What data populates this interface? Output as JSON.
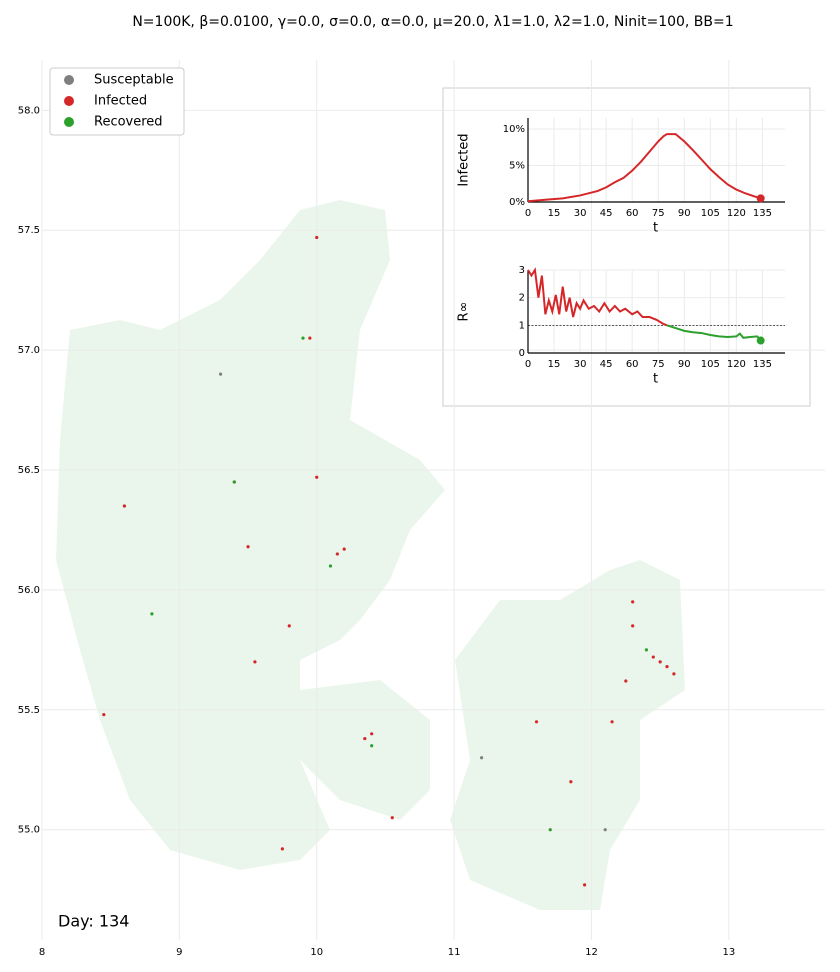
{
  "chart_data": [
    {
      "type": "scatter",
      "title": "N=100K, β=0.0100, γ=0.0, σ=0.0,  α=0.0, μ=20.0, λ1=1.0, λ2=1.0, Ninit=100, BB=1",
      "annotation": "Day: 134",
      "xlim": [
        8,
        13.7
      ],
      "ylim": [
        54.54,
        58.21
      ],
      "xticks": [
        8,
        9,
        10,
        11,
        12,
        13
      ],
      "yticks": [
        {
          "value": 55,
          "label": "55.0"
        },
        {
          "value": 55.5,
          "label": "55.5"
        },
        {
          "value": 56,
          "label": "56.0"
        },
        {
          "value": 56.5,
          "label": "56.5"
        },
        {
          "value": 57,
          "label": "57.0"
        },
        {
          "value": 57.5,
          "label": "57.5"
        },
        {
          "value": 58,
          "label": "58.0"
        }
      ],
      "grid": true,
      "legend": "upper left",
      "series": [
        {
          "name": "Susceptable",
          "color": "#7f7f7f",
          "x": [
            9.3,
            11.2,
            12.1
          ],
          "values": [
            56.9,
            55.3,
            55.0
          ]
        },
        {
          "name": "Infected",
          "color": "#d62728",
          "x": [
            9.95,
            10.0,
            10.4,
            10.35,
            12.55,
            12.5,
            12.6,
            12.45,
            12.3,
            10.15,
            10.2,
            10.0,
            9.8,
            9.55,
            8.45,
            8.6,
            11.85,
            11.95,
            12.3,
            12.25,
            10.55,
            9.75,
            9.5,
            9.4,
            12.15,
            11.6
          ],
          "values": [
            57.05,
            57.47,
            55.4,
            55.38,
            55.68,
            55.7,
            55.65,
            55.72,
            55.85,
            56.15,
            56.17,
            56.47,
            55.85,
            55.7,
            55.48,
            56.35,
            55.2,
            54.77,
            55.95,
            55.62,
            55.05,
            54.92,
            56.18,
            56.45,
            55.45,
            55.45
          ]
        },
        {
          "name": "Recovered",
          "color": "#2ca02c",
          "x": [
            9.9,
            10.1,
            9.4,
            12.4,
            11.7,
            10.4,
            8.8
          ],
          "values": [
            57.05,
            56.1,
            56.45,
            55.75,
            55.0,
            55.35,
            55.9
          ]
        }
      ]
    },
    {
      "type": "line",
      "xlabel": "t",
      "ylabel": "Infected",
      "xlim": [
        0,
        148
      ],
      "ylim": [
        0,
        11.5
      ],
      "xticks": [
        0,
        15,
        30,
        45,
        60,
        75,
        90,
        105,
        120,
        135
      ],
      "yticks": [
        {
          "value": 0,
          "label": "0%"
        },
        {
          "value": 5,
          "label": "5%"
        },
        {
          "value": 10,
          "label": "10%"
        }
      ],
      "grid": true,
      "series": [
        {
          "color": "#d62728",
          "x": [
            0,
            10,
            20,
            30,
            40,
            45,
            50,
            55,
            60,
            65,
            70,
            75,
            78,
            80,
            85,
            90,
            95,
            100,
            105,
            110,
            115,
            120,
            125,
            130,
            134
          ],
          "values": [
            0.1,
            0.3,
            0.5,
            0.9,
            1.5,
            2.0,
            2.7,
            3.3,
            4.3,
            5.5,
            6.9,
            8.3,
            9.0,
            9.3,
            9.3,
            8.3,
            7.1,
            5.8,
            4.5,
            3.4,
            2.4,
            1.7,
            1.2,
            0.8,
            0.5
          ]
        }
      ]
    },
    {
      "type": "line",
      "xlabel": "t",
      "ylabel": "R∞",
      "xlim": [
        0,
        148
      ],
      "ylim": [
        0,
        3
      ],
      "xticks": [
        0,
        15,
        30,
        45,
        60,
        75,
        90,
        105,
        120,
        135
      ],
      "yticks": [
        0,
        1,
        2,
        3
      ],
      "grid": true,
      "reference_line": 1,
      "series": [
        {
          "color": "#d62728",
          "x": [
            0,
            2,
            4,
            6,
            8,
            10,
            12,
            14,
            16,
            18,
            20,
            22,
            24,
            26,
            28,
            30,
            32,
            35,
            38,
            41,
            44,
            47,
            50,
            53,
            56,
            60,
            63,
            66,
            70,
            74,
            78,
            80
          ],
          "values": [
            3.0,
            2.8,
            3.0,
            2.0,
            2.8,
            1.4,
            1.9,
            1.5,
            2.1,
            1.4,
            2.4,
            1.5,
            2.0,
            1.3,
            1.8,
            1.6,
            1.9,
            1.6,
            1.7,
            1.5,
            1.8,
            1.5,
            1.7,
            1.5,
            1.6,
            1.4,
            1.5,
            1.3,
            1.3,
            1.2,
            1.05,
            1.0
          ]
        },
        {
          "color": "#2ca02c",
          "x": [
            80,
            85,
            90,
            95,
            100,
            105,
            110,
            115,
            120,
            122,
            124,
            128,
            132,
            134
          ],
          "values": [
            1.0,
            0.9,
            0.8,
            0.75,
            0.72,
            0.65,
            0.6,
            0.58,
            0.6,
            0.7,
            0.55,
            0.58,
            0.6,
            0.45
          ]
        }
      ]
    }
  ]
}
